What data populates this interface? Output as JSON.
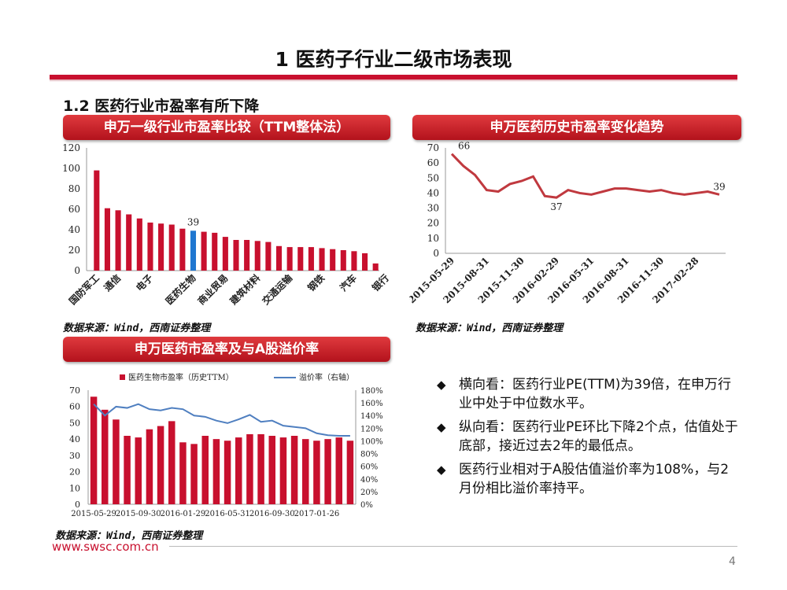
{
  "page": {
    "main_title": "1 医药子行业二级市场表现",
    "section_title": "1.2 医药行业市盈率有所下降",
    "site_url": "www.swsc.com.cn",
    "page_number": "4",
    "accent": "#c8102e"
  },
  "banners": {
    "left": "申万一级行业市盈率比较（TTM整体法）",
    "right": "申万医药历史市盈率变化趋势",
    "bottom": "申万医药市盈率及与A股溢价率"
  },
  "sources": {
    "left": "数据来源：Wind，西南证券整理",
    "right": "数据来源：Wind，西南证券整理",
    "bottom": "数据来源：Wind，西南证券整理"
  },
  "bullets": [
    {
      "icon": "diamond-bullet-icon",
      "text": "横向看：医药行业PE(TTM)为39倍，在申万行业中处于中位数水平。"
    },
    {
      "icon": "diamond-bullet-icon",
      "text": "纵向看：医药行业PE环比下降2个点，估值处于底部，接近过去2年的最低点。"
    },
    {
      "icon": "diamond-bullet-icon",
      "text": "医药行业相对于A股估值溢价率为108%，与2月份相比溢价率持平。"
    }
  ],
  "chart_data": [
    {
      "type": "bar",
      "id": "industry_pe",
      "title": "申万一级行业市盈率比较（TTM整体法）",
      "ylim": [
        0,
        120
      ],
      "yticks": [
        0,
        20,
        40,
        60,
        80,
        100,
        120
      ],
      "values": [
        98,
        61,
        59,
        55,
        51,
        47,
        46,
        45,
        41,
        39,
        38,
        37,
        33,
        30,
        30,
        29,
        28,
        24,
        23,
        23,
        23,
        22,
        21,
        20,
        19,
        17,
        7
      ],
      "highlight_index": 9,
      "highlight_label": "39",
      "tick_labels": [
        {
          "index": 0,
          "label": "国防军工"
        },
        {
          "index": 2,
          "label": "通信"
        },
        {
          "index": 5,
          "label": "电子"
        },
        {
          "index": 9,
          "label": "医药生物"
        },
        {
          "index": 12,
          "label": "商业贸易"
        },
        {
          "index": 15,
          "label": "建筑材料"
        },
        {
          "index": 18,
          "label": "交通运输"
        },
        {
          "index": 21,
          "label": "钢铁"
        },
        {
          "index": 24,
          "label": "汽车"
        },
        {
          "index": 27,
          "label": "银行"
        }
      ],
      "colors": {
        "bar": "#c8102e",
        "highlight": "#1f77d0"
      }
    },
    {
      "type": "line",
      "id": "medical_pe_history",
      "title": "申万医药历史市盈率变化趋势",
      "ylim": [
        0,
        70
      ],
      "yticks": [
        0,
        10,
        20,
        30,
        40,
        50,
        60,
        70
      ],
      "values": [
        66,
        58,
        52,
        42,
        41,
        46,
        48,
        51,
        38,
        37,
        42,
        40,
        39,
        41,
        43,
        43,
        42,
        41,
        42,
        40,
        39,
        40,
        41,
        39
      ],
      "x_labels": [
        {
          "index": 0,
          "label": "2015-05-29"
        },
        {
          "index": 3,
          "label": "2015-08-31"
        },
        {
          "index": 6,
          "label": "2015-11-30"
        },
        {
          "index": 9,
          "label": "2016-02-29"
        },
        {
          "index": 12,
          "label": "2016-05-31"
        },
        {
          "index": 15,
          "label": "2016-08-31"
        },
        {
          "index": 18,
          "label": "2016-11-30"
        },
        {
          "index": 21,
          "label": "2017-02-28"
        }
      ],
      "annotations": [
        {
          "index": 0,
          "label": "66"
        },
        {
          "index": 9,
          "label": "37"
        },
        {
          "index": 23,
          "label": "39"
        }
      ],
      "colors": {
        "line": "#c0393f"
      }
    },
    {
      "type": "bar+line",
      "id": "pe_vs_premium",
      "title": "申万医药市盈率及与A股溢价率",
      "legend": {
        "bar": "医药生物市盈率（历史TTM）",
        "line": "溢价率（右轴）",
        "placement": "top"
      },
      "ylim_left": [
        0,
        70
      ],
      "yticks_left": [
        0,
        10,
        20,
        30,
        40,
        50,
        60,
        70
      ],
      "ylim_right": [
        0,
        180
      ],
      "yticks_right": [
        "0%",
        "20%",
        "40%",
        "60%",
        "80%",
        "100%",
        "120%",
        "140%",
        "160%",
        "180%"
      ],
      "bar_values": [
        66,
        58,
        52,
        42,
        41,
        46,
        48,
        51,
        38,
        37,
        42,
        40,
        39,
        41,
        43,
        43,
        42,
        41,
        42,
        40,
        39,
        40,
        41,
        39
      ],
      "line_values": [
        158,
        140,
        154,
        152,
        158,
        150,
        148,
        152,
        150,
        140,
        138,
        132,
        128,
        134,
        141,
        130,
        132,
        124,
        122,
        120,
        112,
        109,
        108,
        108
      ],
      "x_labels": [
        {
          "index": 0,
          "label": "2015-05-29"
        },
        {
          "index": 4,
          "label": "2015-09-30"
        },
        {
          "index": 8,
          "label": "2016-01-29"
        },
        {
          "index": 12,
          "label": "2016-05-31"
        },
        {
          "index": 16,
          "label": "2016-09-30"
        },
        {
          "index": 20,
          "label": "2017-01-26"
        }
      ],
      "colors": {
        "bar": "#c8102e",
        "line": "#4f7fc0"
      }
    }
  ]
}
